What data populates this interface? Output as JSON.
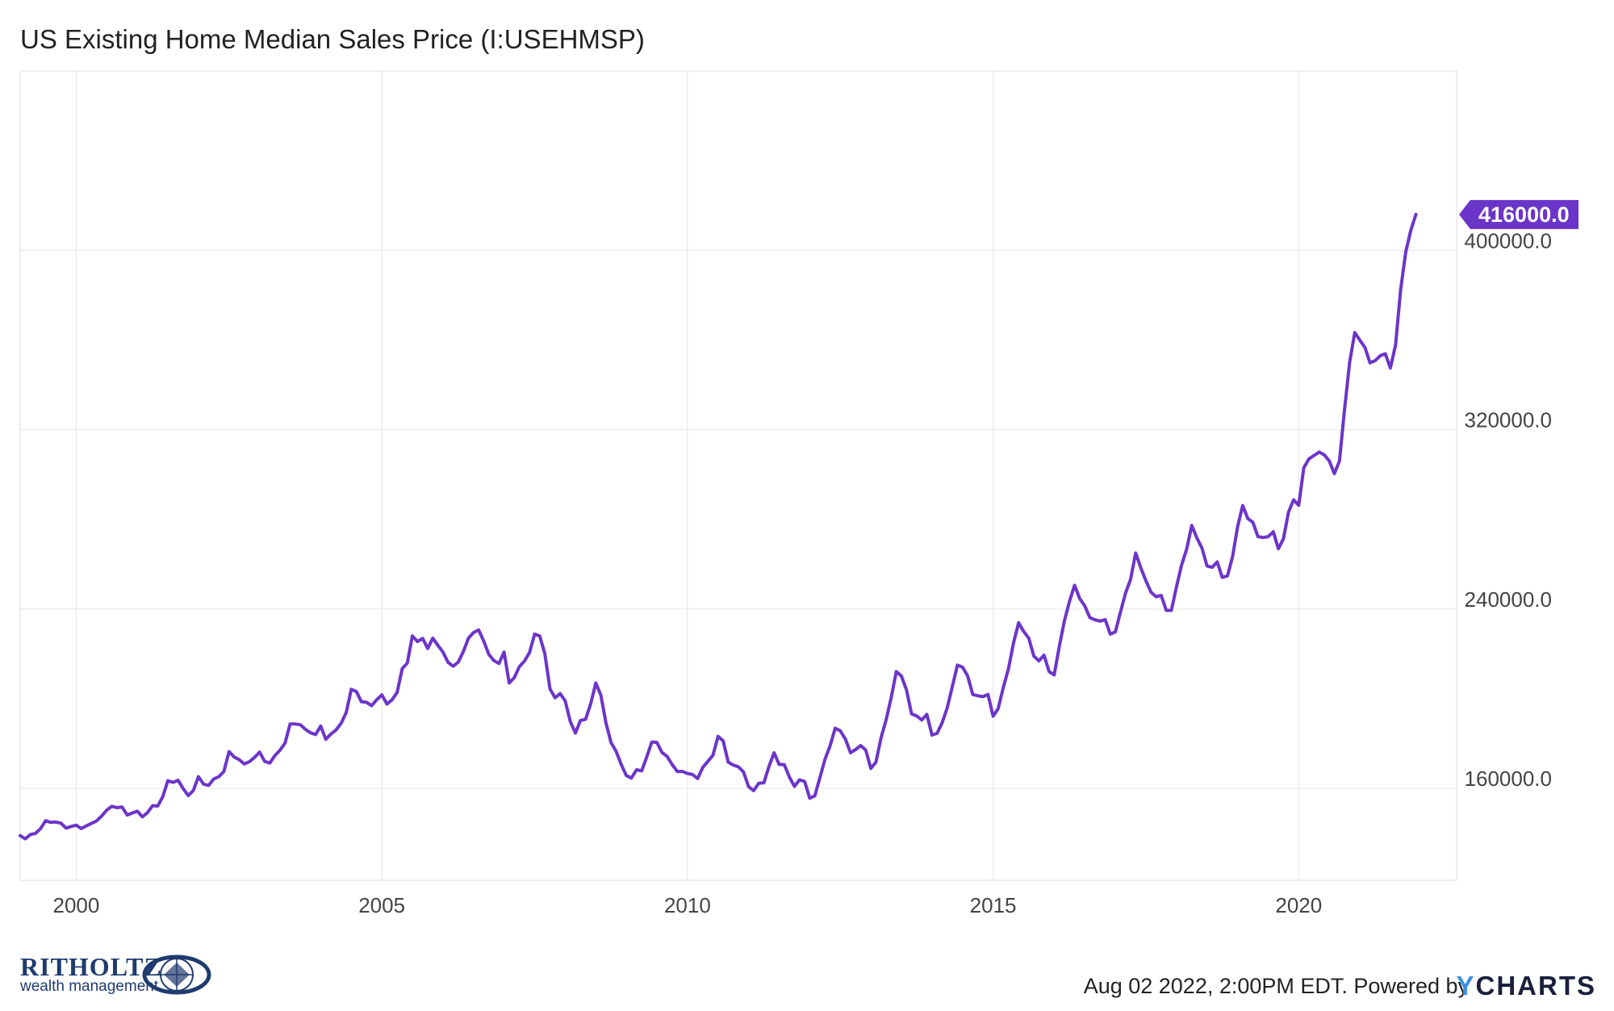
{
  "title": "US Existing Home Median Sales Price (I:USEHMSP)",
  "footer": {
    "timestamp_text": "Aug 02 2022, 2:00PM EDT. Powered by",
    "logo_text": "CHARTS",
    "logo_y": "Y"
  },
  "brand": {
    "name": "RITHOLTZ",
    "sub": "wealth management"
  },
  "colors": {
    "line": "#6c35c9",
    "grid": "#e6e6e6",
    "label_bg": "#6c35c9"
  },
  "chart_data": {
    "type": "line",
    "title": "US Existing Home Median Sales Price (I:USEHMSP)",
    "xlabel": "",
    "ylabel": "",
    "x_ticks": [
      "2000",
      "2005",
      "2010",
      "2015",
      "2020"
    ],
    "y_ticks": [
      "160000.0",
      "240000.0",
      "320000.0",
      "400000.0"
    ],
    "y_tick_values": [
      160000,
      240000,
      320000,
      400000
    ],
    "ylim": [
      119000,
      480000
    ],
    "xlim": [
      "1999-02",
      "2022-08"
    ],
    "grid": true,
    "last_value_label": "416000.0",
    "series": [
      {
        "name": "",
        "start": "1999-02",
        "frequency": "monthly",
        "values": [
          138900,
          137500,
          139400,
          139900,
          142000,
          145600,
          144800,
          145000,
          144500,
          142300,
          143000,
          143600,
          142100,
          143300,
          144400,
          145500,
          147700,
          150300,
          152000,
          151400,
          151700,
          148100,
          149000,
          149800,
          147300,
          149200,
          152300,
          152100,
          156300,
          163400,
          162700,
          163600,
          159900,
          156800,
          159100,
          165200,
          161900,
          161300,
          164200,
          165200,
          167600,
          176400,
          174000,
          172800,
          170900,
          171900,
          173800,
          176200,
          172000,
          171300,
          174600,
          177000,
          180200,
          188700,
          188700,
          188400,
          186300,
          184800,
          184000,
          187800,
          181900,
          184200,
          186000,
          189000,
          193800,
          204200,
          203200,
          198600,
          198400,
          196900,
          199500,
          201700,
          197600,
          199500,
          202800,
          213400,
          215900,
          228000,
          225500,
          226900,
          222400,
          227000,
          223800,
          220800,
          216200,
          214500,
          216300,
          221000,
          227000,
          229500,
          230700,
          225700,
          219800,
          217000,
          215700,
          220800,
          207000,
          209400,
          214300,
          216800,
          220600,
          228800,
          228000,
          220100,
          204400,
          200400,
          202300,
          199000,
          189800,
          184700,
          190300,
          190800,
          197800,
          207000,
          201500,
          189200,
          180400,
          176500,
          170700,
          165700,
          164600,
          168300,
          167800,
          174000,
          180700,
          180500,
          176000,
          174300,
          170600,
          167500,
          167600,
          166600,
          166200,
          164400,
          169300,
          172000,
          174700,
          183200,
          181200,
          171700,
          170400,
          169600,
          167300,
          160800,
          159000,
          162300,
          162500,
          169800,
          175900,
          170700,
          170600,
          165100,
          160900,
          163800,
          163100,
          155600,
          156700,
          164800,
          173000,
          179000,
          186800,
          185700,
          182000,
          175900,
          177300,
          179100,
          177100,
          168900,
          171700,
          182500,
          190500,
          200600,
          212100,
          210100,
          203900,
          193200,
          192300,
          190500,
          193000,
          183800,
          184600,
          189300,
          196000,
          205400,
          215000,
          214100,
          210200,
          201900,
          201300,
          200900,
          201900,
          192200,
          195600,
          205000,
          213100,
          224800,
          233900,
          230000,
          227000,
          219000,
          216900,
          219400,
          212100,
          210600,
          223400,
          234800,
          243500,
          250600,
          244700,
          241400,
          236200,
          235200,
          234600,
          235300,
          228800,
          229800,
          238600,
          247100,
          253300,
          265000,
          258300,
          252600,
          247500,
          245500,
          246100,
          239400,
          239400,
          249800,
          259500,
          266800,
          277300,
          271700,
          267200,
          259200,
          258600,
          261000,
          254100,
          254800,
          263300,
          276700,
          286200,
          280400,
          278700,
          272300,
          271900,
          272300,
          274500,
          266900,
          271400,
          283300,
          288700,
          286300,
          303000,
          307000,
          308500,
          310000,
          308800,
          306100,
          300400,
          306000,
          329000,
          350000,
          363300,
          359900,
          356700,
          349800,
          350800,
          353000,
          353900,
          347500,
          357700,
          382400,
          399200,
          408900,
          416000
        ]
      }
    ]
  }
}
